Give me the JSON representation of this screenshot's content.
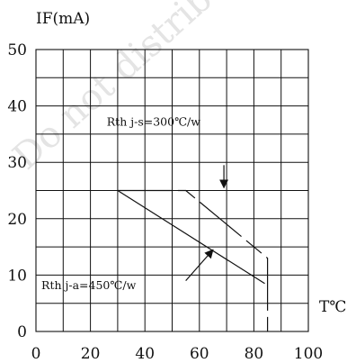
{
  "chart_data": {
    "type": "line",
    "title": "",
    "xlabel": "T℃",
    "ylabel": "IF(mA)",
    "xlim": [
      0,
      100
    ],
    "ylim": [
      0,
      50
    ],
    "x_ticks": [
      0,
      20,
      40,
      60,
      80,
      100
    ],
    "y_ticks": [
      0,
      10,
      20,
      30,
      40,
      50
    ],
    "x_tick_labels": [
      "0",
      "20",
      "40",
      "60",
      "80",
      "100"
    ],
    "y_tick_labels": [
      "0",
      "10",
      "20",
      "30",
      "40",
      "50"
    ],
    "grid": true,
    "watermark": "Do not distribute",
    "series": [
      {
        "name": "Rth j-s=300℃/w",
        "style": "dashed",
        "points": [
          [
            30,
            25
          ],
          [
            55,
            25
          ],
          [
            85,
            13
          ],
          [
            85,
            0
          ]
        ]
      },
      {
        "name": "Rth j-a=450℃/w",
        "style": "solid",
        "points": [
          [
            30,
            25
          ],
          [
            84,
            8.5
          ]
        ]
      }
    ],
    "annotations": [
      {
        "text": "Rth j-s=300℃/w",
        "x": 26,
        "y": 36.5,
        "arrow_from": [
          69,
          29.5
        ],
        "arrow_to": [
          69,
          25.5
        ]
      },
      {
        "text": "Rth j-a=450℃/w",
        "x": 2,
        "y": 7.5,
        "arrow_from": [
          55,
          9
        ],
        "arrow_to": [
          65,
          14.5
        ]
      }
    ]
  }
}
